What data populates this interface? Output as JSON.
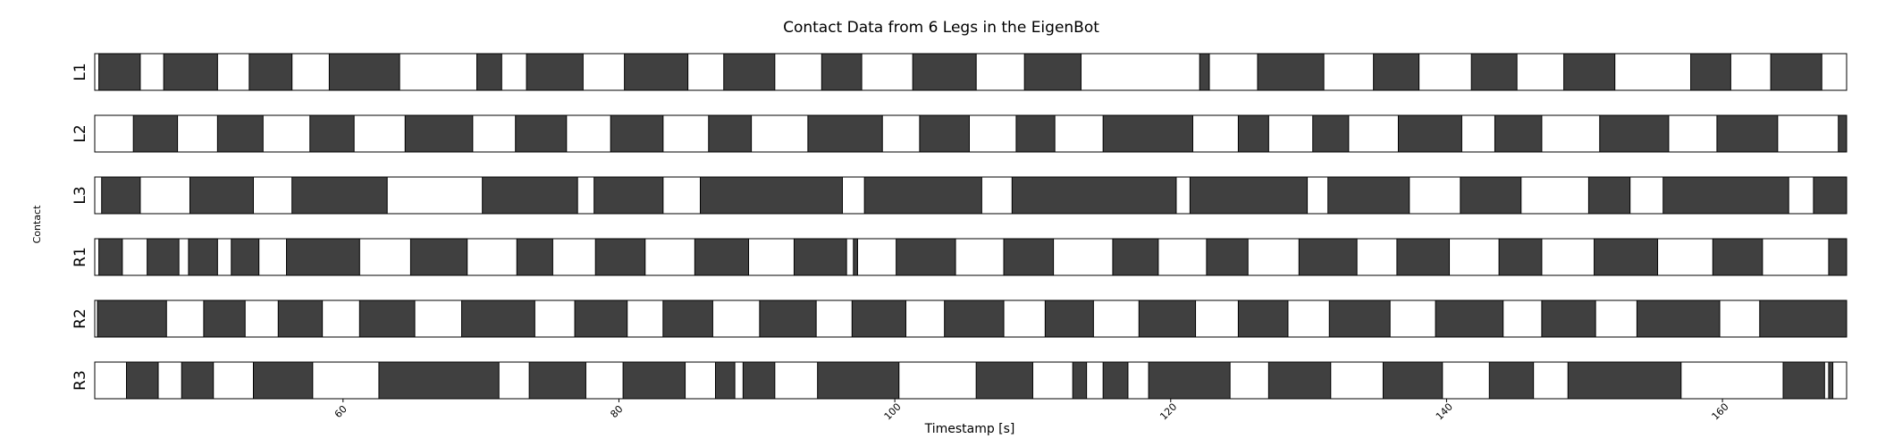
{
  "chart_data": {
    "type": "contact-timeline",
    "title": "Contact Data from 6 Legs in the EigenBot",
    "xlabel": "Timestamp [s]",
    "ylabel": "Contact",
    "xlim": [
      42,
      169
    ],
    "xticks": [
      60,
      80,
      100,
      120,
      140,
      160
    ],
    "state_colors": {
      "contact": "#404040",
      "no_contact": "#ffffff"
    },
    "rows": [
      {
        "label": "L1",
        "contact_intervals": [
          [
            42.3,
            45.3
          ],
          [
            47.0,
            50.9
          ],
          [
            53.2,
            56.3
          ],
          [
            59.0,
            64.1
          ],
          [
            69.7,
            71.5
          ],
          [
            73.3,
            77.4
          ],
          [
            80.4,
            85.0
          ],
          [
            87.6,
            91.3
          ],
          [
            94.7,
            97.6
          ],
          [
            101.3,
            105.9
          ],
          [
            109.4,
            113.5
          ],
          [
            122.1,
            122.8
          ],
          [
            126.3,
            131.1
          ],
          [
            134.7,
            138.0
          ],
          [
            141.8,
            145.1
          ],
          [
            148.5,
            152.2
          ],
          [
            157.7,
            160.6
          ],
          [
            163.5,
            167.2
          ]
        ]
      },
      {
        "label": "L2",
        "contact_intervals": [
          [
            44.8,
            48.0
          ],
          [
            50.9,
            54.2
          ],
          [
            57.6,
            60.8
          ],
          [
            64.5,
            69.4
          ],
          [
            72.5,
            76.2
          ],
          [
            79.4,
            83.2
          ],
          [
            86.5,
            89.6
          ],
          [
            93.7,
            99.1
          ],
          [
            101.8,
            105.4
          ],
          [
            108.8,
            111.6
          ],
          [
            115.1,
            121.6
          ],
          [
            124.9,
            127.1
          ],
          [
            130.3,
            132.9
          ],
          [
            136.5,
            141.1
          ],
          [
            143.5,
            146.9
          ],
          [
            151.1,
            156.1
          ],
          [
            159.6,
            164.0
          ],
          [
            168.4,
            169.0
          ]
        ]
      },
      {
        "label": "L3",
        "contact_intervals": [
          [
            42.5,
            45.3
          ],
          [
            48.9,
            53.5
          ],
          [
            56.3,
            63.2
          ],
          [
            70.1,
            77.0
          ],
          [
            78.2,
            83.2
          ],
          [
            85.9,
            96.2
          ],
          [
            97.8,
            106.3
          ],
          [
            108.5,
            120.4
          ],
          [
            121.4,
            129.9
          ],
          [
            131.4,
            137.3
          ],
          [
            141.0,
            145.4
          ],
          [
            150.3,
            153.3
          ],
          [
            155.7,
            164.8
          ],
          [
            166.6,
            169.0
          ]
        ]
      },
      {
        "label": "R1",
        "contact_intervals": [
          [
            42.3,
            44.0
          ],
          [
            45.8,
            48.1
          ],
          [
            48.8,
            50.9
          ],
          [
            51.9,
            53.9
          ],
          [
            55.9,
            61.2
          ],
          [
            64.9,
            69.0
          ],
          [
            72.6,
            75.2
          ],
          [
            78.3,
            81.9
          ],
          [
            85.5,
            89.4
          ],
          [
            92.7,
            96.5
          ],
          [
            97.0,
            97.3
          ],
          [
            100.1,
            104.4
          ],
          [
            107.9,
            111.5
          ],
          [
            115.8,
            119.1
          ],
          [
            122.6,
            125.6
          ],
          [
            129.3,
            133.5
          ],
          [
            136.4,
            140.2
          ],
          [
            143.8,
            146.9
          ],
          [
            150.7,
            155.3
          ],
          [
            159.3,
            162.9
          ],
          [
            167.7,
            169.0
          ]
        ]
      },
      {
        "label": "R2",
        "contact_intervals": [
          [
            42.2,
            47.2
          ],
          [
            49.9,
            52.9
          ],
          [
            55.3,
            58.5
          ],
          [
            61.2,
            65.2
          ],
          [
            68.6,
            73.9
          ],
          [
            76.8,
            80.6
          ],
          [
            83.2,
            86.8
          ],
          [
            90.2,
            94.3
          ],
          [
            96.9,
            100.8
          ],
          [
            103.6,
            107.9
          ],
          [
            110.9,
            114.4
          ],
          [
            117.7,
            121.8
          ],
          [
            124.9,
            128.5
          ],
          [
            131.5,
            135.9
          ],
          [
            139.2,
            144.1
          ],
          [
            146.9,
            150.8
          ],
          [
            153.8,
            159.8
          ],
          [
            162.7,
            169.0
          ]
        ]
      },
      {
        "label": "R3",
        "contact_intervals": [
          [
            44.3,
            46.6
          ],
          [
            48.3,
            50.6
          ],
          [
            53.5,
            57.8
          ],
          [
            62.6,
            71.3
          ],
          [
            73.5,
            77.6
          ],
          [
            80.3,
            84.8
          ],
          [
            87.0,
            88.4
          ],
          [
            89.0,
            91.3
          ],
          [
            94.4,
            100.3
          ],
          [
            105.9,
            110.0
          ],
          [
            112.9,
            113.9
          ],
          [
            115.1,
            116.9
          ],
          [
            118.4,
            124.3
          ],
          [
            127.1,
            131.6
          ],
          [
            135.4,
            139.7
          ],
          [
            143.1,
            146.3
          ],
          [
            148.8,
            157.0
          ],
          [
            164.4,
            167.4
          ],
          [
            167.7,
            168.0
          ]
        ]
      }
    ]
  }
}
